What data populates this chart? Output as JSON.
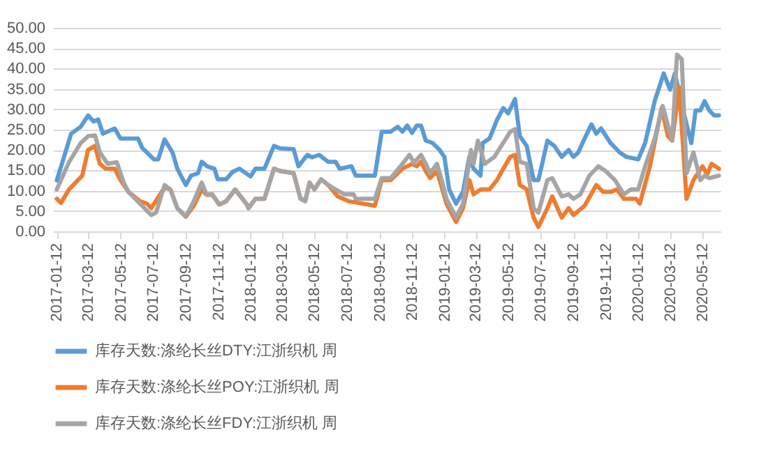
{
  "chart_data": {
    "type": "line",
    "xlim": [
      "2017-01-05",
      "2020-06-15"
    ],
    "xticks": [
      "2017-01-12",
      "2017-03-12",
      "2017-05-12",
      "2017-07-12",
      "2017-09-12",
      "2017-11-12",
      "2018-01-12",
      "2018-03-12",
      "2018-05-12",
      "2018-07-12",
      "2018-09-12",
      "2018-11-12",
      "2019-01-12",
      "2019-03-12",
      "2019-05-12",
      "2019-07-12",
      "2019-09-12",
      "2019-11-12",
      "2020-01-12",
      "2020-03-12",
      "2020-05-12"
    ],
    "ylim": [
      0,
      50
    ],
    "yticks": [
      {
        "value": 0,
        "label": "0.00"
      },
      {
        "value": 5,
        "label": "5.00"
      },
      {
        "value": 10,
        "label": "10.00"
      },
      {
        "value": 15,
        "label": "15.00"
      },
      {
        "value": 20,
        "label": "20.00"
      },
      {
        "value": 25,
        "label": "25.00"
      },
      {
        "value": 30,
        "label": "30.00"
      },
      {
        "value": 35,
        "label": "35.00"
      },
      {
        "value": 40,
        "label": "40.00"
      },
      {
        "value": 45,
        "label": "45.00"
      },
      {
        "value": 50,
        "label": "50.00"
      }
    ],
    "grid": "y",
    "legend": "bottom",
    "marker": "none",
    "line_style": "solid",
    "series": [
      {
        "name": "库存天数:涤纶长丝DTY:江浙织机 周",
        "color": "#5b9bd5",
        "x": [
          "2017-01-12",
          "2017-02-08",
          "2017-02-26",
          "2017-03-12",
          "2017-03-22",
          "2017-03-31",
          "2017-04-09",
          "2017-05-01",
          "2017-05-12",
          "2017-06-14",
          "2017-06-22",
          "2017-07-14",
          "2017-07-22",
          "2017-08-03",
          "2017-08-18",
          "2017-08-27",
          "2017-09-12",
          "2017-09-22",
          "2017-10-05",
          "2017-10-12",
          "2017-10-22",
          "2017-11-05",
          "2017-11-11",
          "2017-11-27",
          "2017-12-09",
          "2017-12-22",
          "2018-01-12",
          "2018-01-21",
          "2018-02-07",
          "2018-02-25",
          "2018-03-08",
          "2018-04-03",
          "2018-04-12",
          "2018-04-29",
          "2018-05-08",
          "2018-05-21",
          "2018-06-07",
          "2018-06-21",
          "2018-06-29",
          "2018-07-21",
          "2018-07-29",
          "2018-09-03",
          "2018-09-16",
          "2018-10-03",
          "2018-10-16",
          "2018-10-25",
          "2018-11-03",
          "2018-11-12",
          "2018-11-21",
          "2018-11-29",
          "2018-12-08",
          "2018-12-21",
          "2019-01-03",
          "2019-01-12",
          "2019-01-21",
          "2019-02-03",
          "2019-02-16",
          "2019-02-28",
          "2019-03-08",
          "2019-03-21",
          "2019-03-25",
          "2019-04-07",
          "2019-04-21",
          "2019-05-03",
          "2019-05-12",
          "2019-05-25",
          "2019-06-03",
          "2019-06-16",
          "2019-06-29",
          "2019-07-08",
          "2019-07-16",
          "2019-07-25",
          "2019-08-07",
          "2019-08-21",
          "2019-09-03",
          "2019-09-12",
          "2019-09-21",
          "2019-10-03",
          "2019-10-16",
          "2019-10-25",
          "2019-11-03",
          "2019-11-21",
          "2019-12-08",
          "2019-12-21",
          "2020-01-12",
          "2020-01-25",
          "2020-02-12",
          "2020-02-29",
          "2020-03-12",
          "2020-03-21",
          "2020-04-12",
          "2020-04-21",
          "2020-04-29",
          "2020-05-08",
          "2020-05-16",
          "2020-05-25",
          "2020-06-03",
          "2020-06-12"
        ],
        "values": [
          12.5,
          24,
          25.7,
          28.5,
          27,
          27.5,
          24,
          25.3,
          22.8,
          22.8,
          20.5,
          17.7,
          17.7,
          22.6,
          19.4,
          15.4,
          11.4,
          13.7,
          14.3,
          17.1,
          16,
          15.4,
          12.8,
          12.8,
          14.6,
          15.4,
          13.5,
          15.4,
          15.4,
          21,
          20.4,
          20.2,
          16,
          18.8,
          18.2,
          18.8,
          17.1,
          17.1,
          15.4,
          16,
          13.7,
          13.7,
          24.5,
          24.5,
          25.7,
          24.5,
          26,
          24.2,
          26,
          26,
          22.3,
          21.7,
          20,
          18.3,
          10.3,
          6.8,
          9.7,
          18.3,
          15.4,
          13.7,
          21.7,
          22.8,
          27.4,
          30.3,
          29,
          32.5,
          23.4,
          21,
          12.6,
          12.6,
          17.1,
          22.3,
          21,
          18.3,
          20,
          18.3,
          19.4,
          22.8,
          26.3,
          24,
          25.3,
          21.7,
          19.4,
          18.3,
          17.7,
          21.7,
          32,
          38.8,
          34.8,
          38.8,
          26.3,
          21.7,
          29.7,
          29.7,
          32,
          29.7,
          28.5,
          28.5
        ]
      },
      {
        "name": "库存天数:涤纶长丝POY:江浙织机 周",
        "color": "#ed7d31",
        "x": [
          "2017-01-12",
          "2017-01-20",
          "2017-02-04",
          "2017-03-01",
          "2017-03-12",
          "2017-03-25",
          "2017-04-03",
          "2017-04-14",
          "2017-05-01",
          "2017-05-12",
          "2017-05-27",
          "2017-06-18",
          "2017-07-01",
          "2017-07-09",
          "2017-08-03",
          "2017-08-14",
          "2017-08-27",
          "2017-09-12",
          "2017-09-27",
          "2017-10-12",
          "2017-10-21",
          "2017-11-01",
          "2017-11-14",
          "2017-11-27",
          "2017-12-14",
          "2018-01-05",
          "2018-01-08",
          "2018-01-21",
          "2018-02-07",
          "2018-02-25",
          "2018-03-08",
          "2018-04-03",
          "2018-04-16",
          "2018-04-25",
          "2018-05-03",
          "2018-05-12",
          "2018-05-25",
          "2018-06-07",
          "2018-06-25",
          "2018-07-16",
          "2018-08-12",
          "2018-09-03",
          "2018-09-16",
          "2018-10-03",
          "2018-10-25",
          "2018-11-12",
          "2018-11-21",
          "2018-11-29",
          "2018-12-08",
          "2018-12-16",
          "2018-12-29",
          "2019-01-16",
          "2019-02-03",
          "2019-02-16",
          "2019-02-28",
          "2019-03-08",
          "2019-03-21",
          "2019-04-07",
          "2019-04-21",
          "2019-05-03",
          "2019-05-16",
          "2019-05-25",
          "2019-06-03",
          "2019-06-16",
          "2019-06-29",
          "2019-07-08",
          "2019-07-25",
          "2019-08-03",
          "2019-08-21",
          "2019-09-03",
          "2019-09-12",
          "2019-10-03",
          "2019-10-25",
          "2019-11-07",
          "2019-11-21",
          "2019-12-03",
          "2019-12-16",
          "2020-01-08",
          "2020-01-15",
          "2020-02-03",
          "2020-02-25",
          "2020-03-08",
          "2020-03-16",
          "2020-03-29",
          "2020-04-12",
          "2020-04-25",
          "2020-05-12",
          "2020-05-21",
          "2020-05-29",
          "2020-06-12"
        ],
        "values": [
          8,
          7,
          10.3,
          13.7,
          20,
          21,
          16.6,
          15.4,
          15.4,
          12.6,
          9.7,
          7.4,
          6.8,
          5.7,
          10.8,
          10.3,
          5.7,
          3.6,
          6.3,
          10.3,
          9,
          9,
          6.6,
          7.4,
          10.3,
          6.6,
          5.7,
          8,
          8,
          15.4,
          14.9,
          14.3,
          8,
          7.6,
          12,
          10.3,
          12.8,
          11.4,
          8.6,
          7.4,
          6.8,
          6.3,
          12.6,
          12.6,
          15.4,
          16.6,
          16,
          17.1,
          14.8,
          13.1,
          14.8,
          6.8,
          2.3,
          5.7,
          12.6,
          9.1,
          10.3,
          10.3,
          12.6,
          15.4,
          18.3,
          18.8,
          11.4,
          10.3,
          3.4,
          1.1,
          5.7,
          8.6,
          3.4,
          5.7,
          4,
          6.3,
          11.4,
          9.7,
          9.7,
          10.3,
          8,
          8,
          6.8,
          16,
          30.3,
          23.4,
          22.3,
          35.4,
          8,
          12.6,
          16,
          14,
          16.6,
          15.4
        ]
      },
      {
        "name": "库存天数:涤纶长丝FDY:江浙织机 周",
        "color": "#a5a5a5",
        "x": [
          "2017-01-12",
          "2017-02-04",
          "2017-02-26",
          "2017-03-12",
          "2017-03-25",
          "2017-04-03",
          "2017-04-18",
          "2017-05-05",
          "2017-05-18",
          "2017-05-27",
          "2017-06-18",
          "2017-07-09",
          "2017-07-18",
          "2017-08-03",
          "2017-08-14",
          "2017-08-27",
          "2017-09-12",
          "2017-09-27",
          "2017-10-12",
          "2017-10-21",
          "2017-11-01",
          "2017-11-14",
          "2017-11-27",
          "2017-12-14",
          "2018-01-05",
          "2018-01-08",
          "2018-01-21",
          "2018-02-07",
          "2018-02-25",
          "2018-03-08",
          "2018-04-03",
          "2018-04-16",
          "2018-04-25",
          "2018-05-03",
          "2018-05-12",
          "2018-05-25",
          "2018-06-07",
          "2018-06-21",
          "2018-07-08",
          "2018-07-25",
          "2018-07-29",
          "2018-09-03",
          "2018-09-16",
          "2018-10-03",
          "2018-10-25",
          "2018-11-07",
          "2018-11-16",
          "2018-11-29",
          "2018-12-08",
          "2018-12-16",
          "2018-12-29",
          "2019-01-07",
          "2019-01-16",
          "2019-02-03",
          "2019-02-16",
          "2019-03-03",
          "2019-03-08",
          "2019-03-16",
          "2019-03-29",
          "2019-04-16",
          "2019-04-29",
          "2019-05-08",
          "2019-05-16",
          "2019-05-25",
          "2019-06-03",
          "2019-06-16",
          "2019-06-29",
          "2019-07-08",
          "2019-07-25",
          "2019-08-03",
          "2019-08-21",
          "2019-09-03",
          "2019-09-12",
          "2019-09-25",
          "2019-10-12",
          "2019-10-29",
          "2019-11-12",
          "2019-11-29",
          "2019-12-16",
          "2019-12-29",
          "2020-01-12",
          "2020-01-25",
          "2020-02-12",
          "2020-02-27",
          "2020-03-16",
          "2020-03-25",
          "2020-04-03",
          "2020-04-12",
          "2020-04-25",
          "2020-05-08",
          "2020-05-16",
          "2020-05-25",
          "2020-06-12"
        ],
        "values": [
          10.3,
          17,
          21.7,
          23.4,
          23.6,
          19.4,
          16.6,
          17,
          12,
          9.7,
          6.8,
          4,
          4.6,
          11.4,
          10.3,
          5.7,
          3.6,
          7.4,
          12,
          9.1,
          9.1,
          6.6,
          7.4,
          10.3,
          6.6,
          5.7,
          8,
          8,
          15.4,
          14.8,
          14.3,
          8,
          7.4,
          12,
          10.3,
          12.8,
          11.4,
          10.3,
          9.1,
          9.1,
          8,
          8,
          13.1,
          13.1,
          16.6,
          18.8,
          16.9,
          18.8,
          16.6,
          14.3,
          16.6,
          12.6,
          8,
          3.4,
          6.8,
          20,
          16.6,
          22.3,
          16.6,
          18.3,
          21,
          22.8,
          24.5,
          25.1,
          17.1,
          16.6,
          5.7,
          4.6,
          12.6,
          13.1,
          8.6,
          9.1,
          8,
          9.1,
          13.7,
          16,
          14.8,
          12.6,
          9.1,
          10.3,
          10.3,
          16,
          22.8,
          30.8,
          22.3,
          43.4,
          42.3,
          14.3,
          19.4,
          12.6,
          13.7,
          13.1,
          13.7
        ]
      }
    ]
  }
}
